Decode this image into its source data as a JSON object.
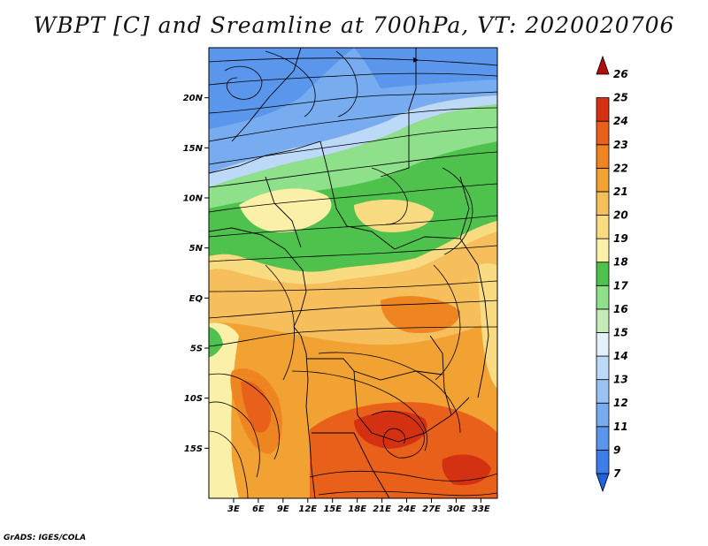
{
  "title": "WBPT [C] and Sreamline at 700hPa, VT: 2020020706",
  "credit": "GrADS: IGES/COLA",
  "map": {
    "lat_ticks": [
      "20N",
      "15N",
      "10N",
      "5N",
      "EQ",
      "5S",
      "10S",
      "15S"
    ],
    "lat_values": [
      20,
      15,
      10,
      5,
      0,
      -5,
      -10,
      -15
    ],
    "lon_ticks": [
      "3E",
      "6E",
      "9E",
      "12E",
      "15E",
      "18E",
      "21E",
      "24E",
      "27E",
      "30E",
      "33E"
    ],
    "lon_values": [
      3,
      6,
      9,
      12,
      15,
      18,
      21,
      24,
      27,
      30,
      33
    ],
    "lat_range": [
      -20,
      25
    ],
    "lon_range": [
      0,
      35
    ]
  },
  "colorbar": {
    "labels": [
      "7",
      "9",
      "11",
      "12",
      "13",
      "14",
      "15",
      "16",
      "17",
      "18",
      "19",
      "20",
      "21",
      "22",
      "23",
      "24",
      "25",
      "26"
    ],
    "colors": [
      "#1f62e0",
      "#3b7ee8",
      "#5a96ec",
      "#78acf0",
      "#98c3f4",
      "#bcd9f8",
      "#e3f1fb",
      "#c5ecb8",
      "#8ee08a",
      "#4ec24c",
      "#fbf0a8",
      "#f9dc82",
      "#f7be5c",
      "#f2a233",
      "#ee8520",
      "#e8601a",
      "#d43112",
      "#b10e0e"
    ]
  }
}
